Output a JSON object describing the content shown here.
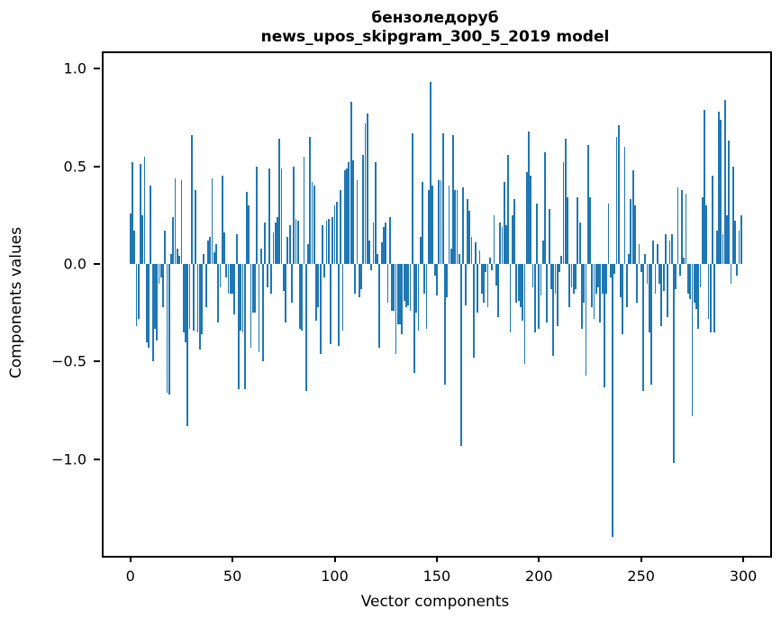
{
  "title": {
    "line1": "бензоледоруб",
    "line2": "news_upos_skipgram_300_5_2019 model"
  },
  "chart_data": {
    "type": "bar",
    "title": "бензоледоруб",
    "subtitle": "news_upos_skipgram_300_5_2019 model",
    "xlabel": "Vector components",
    "ylabel": "Components values",
    "x_tick_values": [
      0,
      50,
      100,
      150,
      200,
      250,
      300
    ],
    "x_tick_labels": [
      "0",
      "50",
      "100",
      "150",
      "200",
      "250",
      "300"
    ],
    "y_tick_values": [
      1.0,
      0.5,
      0.0,
      -0.5,
      -1.0
    ],
    "y_tick_labels": [
      "1.0",
      "0.5",
      "0.0",
      "−0.5",
      "−1.0"
    ],
    "xlim": [
      -13.1,
      313.2
    ],
    "ylim": [
      -1.495,
      1.08
    ],
    "grid": false,
    "legend": null,
    "bar_color": "#1f77b4",
    "n_components": 300,
    "values": [
      0.26,
      0.52,
      0.17,
      -0.32,
      -0.28,
      0.51,
      0.25,
      0.55,
      -0.4,
      -0.43,
      0.4,
      -0.5,
      -0.33,
      -0.39,
      -0.1,
      -0.07,
      -0.22,
      0.17,
      -0.66,
      -0.67,
      0.05,
      0.24,
      0.44,
      0.08,
      0.04,
      0.43,
      -0.35,
      -0.4,
      -0.83,
      -0.33,
      0.66,
      -0.34,
      0.38,
      -0.35,
      -0.44,
      -0.36,
      0.05,
      -0.22,
      0.12,
      0.14,
      0.44,
      0.06,
      0.1,
      -0.3,
      -0.12,
      0.45,
      0.16,
      -0.07,
      -0.15,
      -0.15,
      -0.15,
      -0.26,
      0.15,
      -0.64,
      -0.34,
      -0.35,
      -0.64,
      0.37,
      0.3,
      -0.43,
      -0.25,
      -0.25,
      0.5,
      -0.45,
      0.08,
      -0.5,
      0.21,
      -0.12,
      0.49,
      -0.15,
      0.16,
      0.21,
      0.24,
      0.64,
      0.49,
      -0.14,
      -0.3,
      0.14,
      0.2,
      -0.2,
      0.5,
      0.23,
      0.22,
      -0.33,
      -0.34,
      0.55,
      -0.65,
      0.1,
      0.65,
      0.42,
      0.4,
      -0.29,
      -0.22,
      -0.46,
      0.2,
      -0.07,
      0.22,
      0.23,
      -0.41,
      0.24,
      0.3,
      0.32,
      -0.42,
      0.38,
      -0.34,
      0.48,
      0.49,
      0.52,
      0.83,
      0.53,
      -0.15,
      0.43,
      -0.17,
      -0.13,
      0.56,
      0.72,
      0.77,
      0.12,
      -0.03,
      0.21,
      0.52,
      0.05,
      -0.43,
      0.11,
      0.19,
      0.21,
      -0.2,
      0.24,
      -0.24,
      -0.24,
      -0.46,
      -0.31,
      -0.31,
      -0.36,
      -0.19,
      -0.22,
      -0.21,
      -0.24,
      0.67,
      -0.56,
      -0.25,
      -0.34,
      0.14,
      0.42,
      -0.15,
      -0.33,
      0.38,
      0.93,
      0.4,
      -0.06,
      -0.16,
      0.43,
      0.43,
      0.67,
      -0.62,
      -0.17,
      0.4,
      0.08,
      0.66,
      0.38,
      0.38,
      0.05,
      -0.93,
      0.39,
      -0.21,
      0.33,
      0.27,
      0.14,
      -0.48,
      0.11,
      -0.25,
      0.07,
      -0.15,
      -0.2,
      -0.04,
      -0.22,
      0.03,
      -0.03,
      0.25,
      -0.11,
      -0.27,
      0.21,
      0.19,
      0.42,
      0.2,
      0.56,
      -0.35,
      0.25,
      0.33,
      -0.2,
      -0.19,
      -0.22,
      -0.29,
      -0.51,
      0.47,
      0.68,
      0.45,
      -0.12,
      -0.35,
      0.31,
      -0.33,
      -0.16,
      0.12,
      0.57,
      -0.3,
      0.28,
      -0.13,
      -0.47,
      -0.15,
      -0.32,
      -0.04,
      0.04,
      0.52,
      0.64,
      0.34,
      -0.22,
      -0.12,
      -0.15,
      -0.13,
      0.34,
      0.21,
      -0.33,
      -0.2,
      -0.57,
      0.61,
      0.34,
      -0.22,
      -0.28,
      -0.15,
      -0.12,
      -0.3,
      -0.15,
      -0.63,
      -0.15,
      0.31,
      -0.07,
      -1.4,
      -0.05,
      0.65,
      0.71,
      -0.17,
      -0.36,
      0.6,
      -0.22,
      0.05,
      0.33,
      0.48,
      0.3,
      -0.2,
      0.1,
      -0.04,
      -0.65,
      0.05,
      -0.1,
      -0.35,
      -0.62,
      0.12,
      -0.15,
      0.1,
      -0.1,
      -0.32,
      -0.14,
      0.15,
      -0.27,
      0.12,
      0.15,
      -1.02,
      -0.13,
      0.39,
      -0.06,
      0.38,
      0.03,
      0.36,
      -0.15,
      -0.18,
      -0.78,
      -0.2,
      -0.23,
      -0.33,
      -0.12,
      0.34,
      0.79,
      0.3,
      -0.28,
      -0.35,
      0.45,
      -0.35,
      0.17,
      0.78,
      0.74,
      0.15,
      0.84,
      0.25,
      0.63,
      -0.1,
      0.5,
      0.22,
      -0.06,
      0.17,
      0.25
    ]
  }
}
